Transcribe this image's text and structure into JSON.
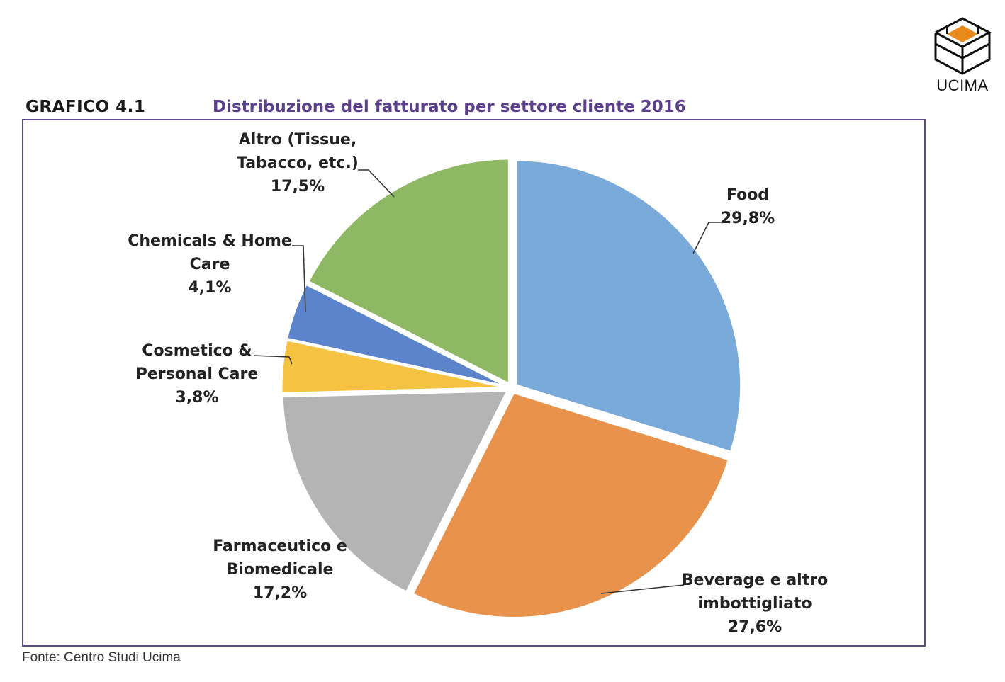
{
  "header": {
    "figure_label": "GRAFICO 4.1",
    "title": "Distribuzione del fatturato per settore cliente 2016"
  },
  "logo": {
    "text": "UCIMA",
    "colors": {
      "accent": "#e88a1c",
      "line": "#111111"
    }
  },
  "footer": {
    "source": "Fonte: Centro Studi Ucima"
  },
  "chart_data": {
    "type": "pie",
    "title": "Distribuzione del fatturato per settore cliente 2016",
    "slices": [
      {
        "label_lines": [
          "Food"
        ],
        "value": 29.8,
        "value_text": "29,8%",
        "color": "#7aaad9"
      },
      {
        "label_lines": [
          "Beverage e altro",
          "imbottigliato"
        ],
        "value": 27.6,
        "value_text": "27,6%",
        "color": "#e8924c"
      },
      {
        "label_lines": [
          "Farmaceutico e",
          "Biomedicale"
        ],
        "value": 17.2,
        "value_text": "17,2%",
        "color": "#b4b4b4"
      },
      {
        "label_lines": [
          "Cosmetico &",
          "Personal Care"
        ],
        "value": 3.8,
        "value_text": "3,8%",
        "color": "#f5c242"
      },
      {
        "label_lines": [
          "Chemicals & Home",
          "Care"
        ],
        "value": 4.1,
        "value_text": "4,1%",
        "color": "#5b84cc"
      },
      {
        "label_lines": [
          "Altro (Tissue,",
          "Tabacco, etc.)"
        ],
        "value": 17.5,
        "value_text": "17,5%",
        "color": "#8fb865"
      }
    ]
  }
}
